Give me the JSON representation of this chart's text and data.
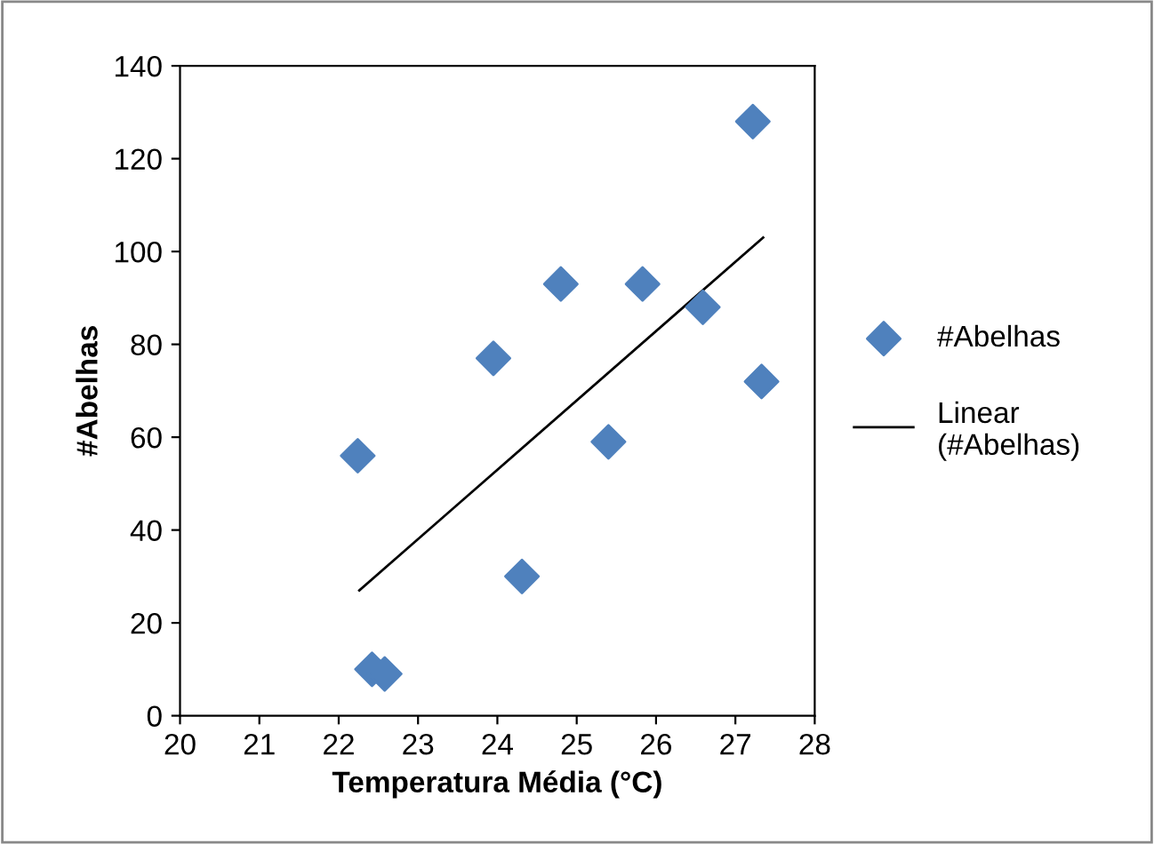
{
  "chart_data": {
    "type": "scatter",
    "xlabel": "Temperatura Média (°C)",
    "ylabel": "#Abelhas",
    "xlim": [
      20,
      28
    ],
    "xticks": [
      20,
      21,
      22,
      23,
      24,
      25,
      26,
      27,
      28
    ],
    "ylim": [
      0,
      140
    ],
    "yticks": [
      0,
      20,
      40,
      60,
      80,
      100,
      120,
      140
    ],
    "grid": false,
    "legend": "right",
    "series": [
      {
        "name": "#Abelhas",
        "marker": "diamond",
        "color": "#4f81bd",
        "x": [
          22.24,
          22.42,
          22.58,
          23.95,
          24.31,
          24.8,
          25.4,
          25.83,
          26.59,
          27.22,
          27.33
        ],
        "values": [
          56,
          10,
          9,
          77,
          30,
          93,
          59,
          93,
          88,
          128,
          72
        ]
      },
      {
        "name": "Linear (#Abelhas)",
        "type": "line",
        "marker": "none",
        "line_style": "solid",
        "color": "#000000",
        "x": [
          22.26,
          27.35
        ],
        "values": [
          27,
          103
        ]
      }
    ]
  }
}
